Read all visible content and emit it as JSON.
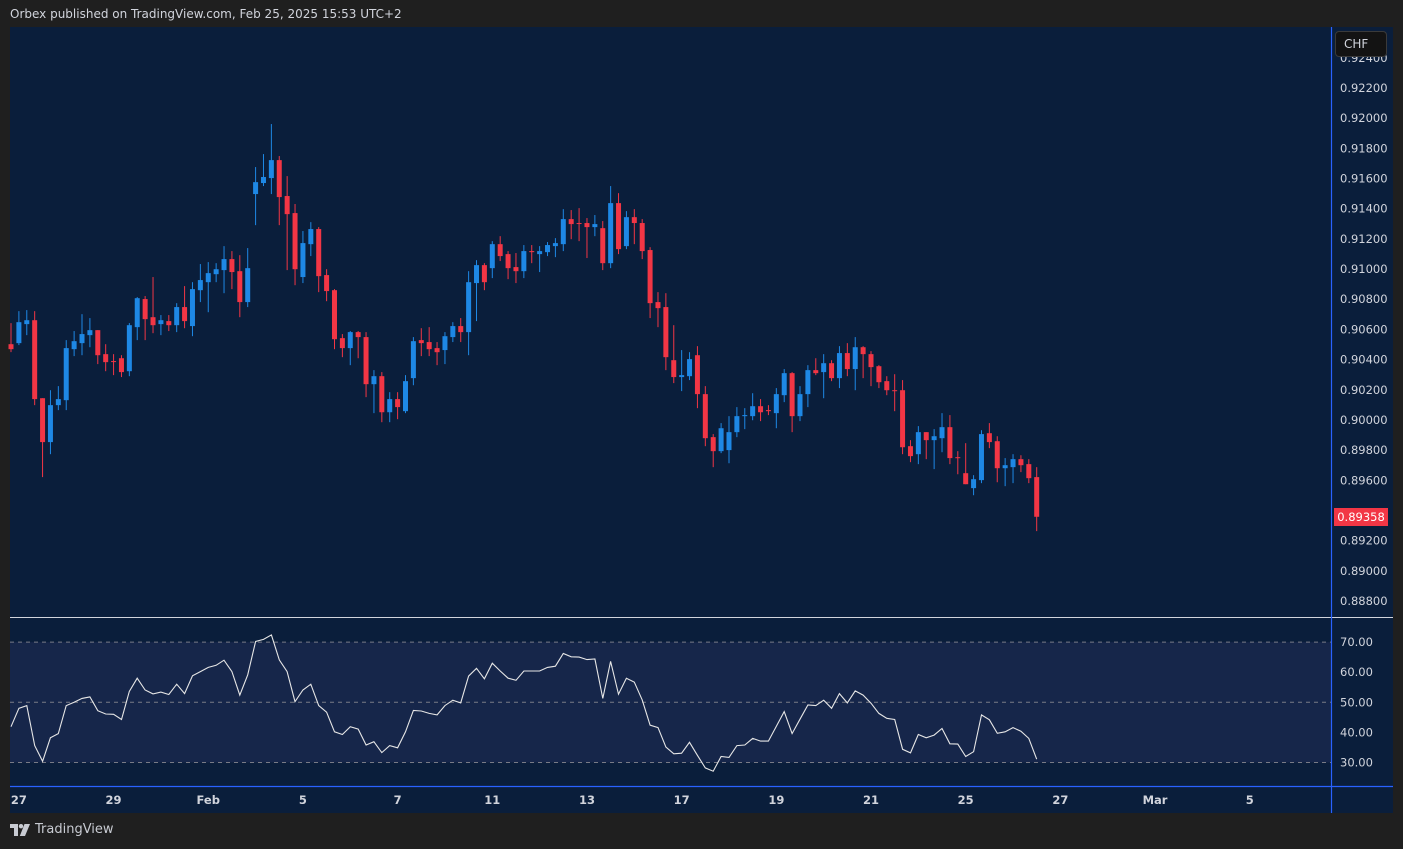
{
  "header": {
    "text": "Orbex published on TradingView.com, Feb 25, 2025 15:53 UTC+2"
  },
  "currency_button": "CHF",
  "last_price_label": "0.89358",
  "footer": {
    "brand": "TradingView",
    "logo_icon": "tradingview-logo-icon"
  },
  "colors": {
    "background": "#0a1e3b",
    "up": "#1e88e5",
    "down": "#f23645",
    "rsi_line": "#e6e6e6",
    "rsi_band": "#16264a",
    "frame": "#1f1f1f"
  },
  "chart_data": {
    "type": "candlestick",
    "price_axis_ticks": [
      "0.92400",
      "0.92200",
      "0.92000",
      "0.91800",
      "0.91600",
      "0.91400",
      "0.91200",
      "0.91000",
      "0.90800",
      "0.90600",
      "0.90400",
      "0.90200",
      "0.90000",
      "0.89800",
      "0.89600",
      "0.89400",
      "0.89200",
      "0.89000",
      "0.88800"
    ],
    "time_axis_ticks": [
      "27",
      "29",
      "Feb",
      "5",
      "7",
      "11",
      "13",
      "17",
      "19",
      "21",
      "25",
      "27",
      "Mar",
      "5"
    ],
    "last_price": 0.89358,
    "candle_fields": [
      "open",
      "high",
      "low",
      "close"
    ],
    "candles": [
      [
        0.90502,
        0.90642,
        0.90449,
        0.90469
      ],
      [
        0.90509,
        0.90721,
        0.90496,
        0.90648
      ],
      [
        0.90635,
        0.90728,
        0.90562,
        0.90661
      ],
      [
        0.90661,
        0.90721,
        0.90098,
        0.90138
      ],
      [
        0.90144,
        0.90144,
        0.89621,
        0.89853
      ],
      [
        0.89853,
        0.90197,
        0.89773,
        0.90098
      ],
      [
        0.90098,
        0.90224,
        0.90065,
        0.90138
      ],
      [
        0.90131,
        0.90529,
        0.90065,
        0.90476
      ],
      [
        0.90469,
        0.90589,
        0.90423,
        0.90522
      ],
      [
        0.90509,
        0.90701,
        0.90429,
        0.90569
      ],
      [
        0.90562,
        0.90675,
        0.90482,
        0.90595
      ],
      [
        0.90595,
        0.90595,
        0.9037,
        0.90429
      ],
      [
        0.90436,
        0.90502,
        0.90323,
        0.90383
      ],
      [
        0.9039,
        0.90436,
        0.90297,
        0.90389
      ],
      [
        0.90409,
        0.90429,
        0.90284,
        0.90317
      ],
      [
        0.90323,
        0.90642,
        0.9029,
        0.90628
      ],
      [
        0.90615,
        0.90814,
        0.90529,
        0.90807
      ],
      [
        0.90801,
        0.90821,
        0.90529,
        0.90668
      ],
      [
        0.90681,
        0.90947,
        0.90575,
        0.90628
      ],
      [
        0.90635,
        0.90695,
        0.90562,
        0.90661
      ],
      [
        0.90655,
        0.90695,
        0.90589,
        0.90628
      ],
      [
        0.90628,
        0.90774,
        0.90582,
        0.90748
      ],
      [
        0.90748,
        0.90887,
        0.90608,
        0.90655
      ],
      [
        0.90622,
        0.90913,
        0.90555,
        0.90867
      ],
      [
        0.9086,
        0.91033,
        0.90781,
        0.90927
      ],
      [
        0.90913,
        0.91046,
        0.90714,
        0.90973
      ],
      [
        0.90966,
        0.91039,
        0.90913,
        0.90999
      ],
      [
        0.90993,
        0.91152,
        0.9084,
        0.91066
      ],
      [
        0.91066,
        0.91119,
        0.90867,
        0.9098
      ],
      [
        0.90986,
        0.91092,
        0.90681,
        0.90781
      ],
      [
        0.90781,
        0.91139,
        0.90748,
        0.91006
      ],
      [
        0.91497,
        0.91676,
        0.91291,
        0.91576
      ],
      [
        0.9157,
        0.91762,
        0.9155,
        0.9161
      ],
      [
        0.91603,
        0.91961,
        0.91497,
        0.91722
      ],
      [
        0.91722,
        0.91749,
        0.91291,
        0.91477
      ],
      [
        0.91484,
        0.91616,
        0.90993,
        0.91364
      ],
      [
        0.91371,
        0.91431,
        0.90893,
        0.90999
      ],
      [
        0.90947,
        0.91252,
        0.90907,
        0.91172
      ],
      [
        0.91165,
        0.91311,
        0.91086,
        0.91265
      ],
      [
        0.91265,
        0.91278,
        0.90847,
        0.90953
      ],
      [
        0.9096,
        0.90999,
        0.90787,
        0.90854
      ],
      [
        0.9086,
        0.90867,
        0.90469,
        0.90535
      ],
      [
        0.90542,
        0.90569,
        0.90416,
        0.90476
      ],
      [
        0.90476,
        0.90589,
        0.90363,
        0.90582
      ],
      [
        0.90582,
        0.90589,
        0.90409,
        0.90549
      ],
      [
        0.90549,
        0.90582,
        0.90151,
        0.90237
      ],
      [
        0.90237,
        0.9033,
        0.90045,
        0.9029
      ],
      [
        0.9029,
        0.90317,
        0.89985,
        0.90051
      ],
      [
        0.90051,
        0.90184,
        0.89985,
        0.90138
      ],
      [
        0.90138,
        0.90184,
        0.90005,
        0.90085
      ],
      [
        0.90058,
        0.90297,
        0.90045,
        0.90257
      ],
      [
        0.90277,
        0.90549,
        0.9023,
        0.90522
      ],
      [
        0.90529,
        0.90608,
        0.90423,
        0.90509
      ],
      [
        0.90516,
        0.90615,
        0.90423,
        0.90469
      ],
      [
        0.90476,
        0.90516,
        0.90363,
        0.90449
      ],
      [
        0.90463,
        0.90582,
        0.9037,
        0.90555
      ],
      [
        0.90549,
        0.90648,
        0.90516,
        0.90622
      ],
      [
        0.90622,
        0.90675,
        0.90516,
        0.90582
      ],
      [
        0.90582,
        0.90986,
        0.90429,
        0.90913
      ],
      [
        0.90907,
        0.91059,
        0.90655,
        0.91026
      ],
      [
        0.91026,
        0.91039,
        0.9086,
        0.90913
      ],
      [
        0.91006,
        0.91185,
        0.9094,
        0.91165
      ],
      [
        0.91165,
        0.91218,
        0.91053,
        0.91086
      ],
      [
        0.91099,
        0.91119,
        0.90933,
        0.91006
      ],
      [
        0.91013,
        0.91106,
        0.90907,
        0.90986
      ],
      [
        0.90986,
        0.91159,
        0.9094,
        0.91119
      ],
      [
        0.91119,
        0.91159,
        0.91039,
        0.91112
      ],
      [
        0.91099,
        0.91152,
        0.9098,
        0.91119
      ],
      [
        0.91112,
        0.91179,
        0.91086,
        0.91159
      ],
      [
        0.91152,
        0.91205,
        0.91079,
        0.91172
      ],
      [
        0.91165,
        0.91397,
        0.91119,
        0.91331
      ],
      [
        0.91331,
        0.91391,
        0.91198,
        0.91298
      ],
      [
        0.91305,
        0.91404,
        0.91185,
        0.91304
      ],
      [
        0.91305,
        0.91338,
        0.91073,
        0.91278
      ],
      [
        0.91278,
        0.91358,
        0.91218,
        0.91298
      ],
      [
        0.91271,
        0.91318,
        0.90993,
        0.91039
      ],
      [
        0.91039,
        0.9155,
        0.91006,
        0.91437
      ],
      [
        0.91437,
        0.91503,
        0.91099,
        0.91132
      ],
      [
        0.91152,
        0.91384,
        0.91132,
        0.91344
      ],
      [
        0.91344,
        0.91397,
        0.91165,
        0.91305
      ],
      [
        0.91305,
        0.91331,
        0.91066,
        0.91119
      ],
      [
        0.91126,
        0.91145,
        0.90675,
        0.90774
      ],
      [
        0.90781,
        0.90847,
        0.90615,
        0.90741
      ],
      [
        0.90748,
        0.9084,
        0.9033,
        0.90416
      ],
      [
        0.90396,
        0.90628,
        0.90244,
        0.90284
      ],
      [
        0.90284,
        0.90463,
        0.90191,
        0.90297
      ],
      [
        0.9029,
        0.90449,
        0.90264,
        0.90403
      ],
      [
        0.90429,
        0.90489,
        0.90078,
        0.90171
      ],
      [
        0.90171,
        0.90224,
        0.89826,
        0.89879
      ],
      [
        0.89886,
        0.89906,
        0.89687,
        0.89793
      ],
      [
        0.89793,
        0.89979,
        0.8978,
        0.89945
      ],
      [
        0.898,
        0.90025,
        0.89713,
        0.89919
      ],
      [
        0.89919,
        0.90085,
        0.89886,
        0.90025
      ],
      [
        0.90025,
        0.90078,
        0.89939,
        0.90032
      ],
      [
        0.90025,
        0.90177,
        0.89998,
        0.90091
      ],
      [
        0.90091,
        0.90138,
        0.89992,
        0.90051
      ],
      [
        0.90065,
        0.90098,
        0.90032,
        0.90058
      ],
      [
        0.90045,
        0.90211,
        0.89945,
        0.90171
      ],
      [
        0.90164,
        0.90337,
        0.90118,
        0.9031
      ],
      [
        0.9031,
        0.90317,
        0.89919,
        0.90025
      ],
      [
        0.90025,
        0.90224,
        0.89992,
        0.90171
      ],
      [
        0.90171,
        0.90363,
        0.90085,
        0.9033
      ],
      [
        0.9033,
        0.90409,
        0.90297,
        0.9031
      ],
      [
        0.90317,
        0.90436,
        0.90144,
        0.90376
      ],
      [
        0.90376,
        0.90396,
        0.90257,
        0.90277
      ],
      [
        0.90277,
        0.90489,
        0.90211,
        0.90443
      ],
      [
        0.90443,
        0.90509,
        0.9029,
        0.90337
      ],
      [
        0.90337,
        0.90549,
        0.90197,
        0.90482
      ],
      [
        0.90482,
        0.90489,
        0.90277,
        0.90436
      ],
      [
        0.90436,
        0.90456,
        0.90224,
        0.9035
      ],
      [
        0.90356,
        0.90363,
        0.90211,
        0.9025
      ],
      [
        0.90257,
        0.9029,
        0.90164,
        0.90197
      ],
      [
        0.90197,
        0.90303,
        0.90058,
        0.90191
      ],
      [
        0.90197,
        0.90264,
        0.89773,
        0.89819
      ],
      [
        0.89826,
        0.89866,
        0.8972,
        0.8976
      ],
      [
        0.89773,
        0.89959,
        0.89707,
        0.89919
      ],
      [
        0.89919,
        0.89919,
        0.8974,
        0.89866
      ],
      [
        0.89866,
        0.89939,
        0.89674,
        0.89892
      ],
      [
        0.89879,
        0.90045,
        0.89786,
        0.89952
      ],
      [
        0.89952,
        0.90032,
        0.89707,
        0.89747
      ],
      [
        0.89753,
        0.89793,
        0.8964,
        0.89747
      ],
      [
        0.89647,
        0.89846,
        0.89574,
        0.89574
      ],
      [
        0.89548,
        0.89634,
        0.89501,
        0.89607
      ],
      [
        0.89601,
        0.89932,
        0.89581,
        0.89906
      ],
      [
        0.89912,
        0.89979,
        0.89813,
        0.89853
      ],
      [
        0.89859,
        0.89892,
        0.89587,
        0.8968
      ],
      [
        0.8968,
        0.89747,
        0.89561,
        0.897
      ],
      [
        0.89687,
        0.89773,
        0.89581,
        0.8974
      ],
      [
        0.8974,
        0.89766,
        0.89654,
        0.897
      ],
      [
        0.89707,
        0.8974,
        0.89581,
        0.89614
      ],
      [
        0.89621,
        0.89687,
        0.89263,
        0.89358
      ]
    ],
    "rsi": {
      "axis_ticks": [
        "70.00",
        "60.00",
        "50.00",
        "40.00",
        "30.00"
      ],
      "levels": [
        70,
        50,
        30
      ],
      "ylim": [
        22,
        78
      ],
      "values": [
        41.9,
        48.0,
        48.9,
        35.6,
        30.4,
        38.2,
        39.6,
        48.9,
        50.0,
        51.3,
        51.8,
        47.2,
        46.1,
        46.0,
        44.3,
        53.6,
        58.0,
        54.1,
        52.8,
        53.4,
        52.6,
        56.0,
        52.9,
        58.8,
        60.2,
        61.6,
        62.3,
        64.0,
        60.2,
        52.4,
        59.1,
        70.2,
        70.9,
        72.4,
        64.1,
        60.2,
        50.2,
        54.1,
        56.0,
        48.9,
        46.7,
        40.2,
        39.3,
        41.9,
        41.1,
        35.8,
        36.9,
        33.3,
        35.6,
        34.9,
        40.2,
        47.3,
        47.1,
        46.3,
        45.8,
        48.9,
        50.7,
        49.8,
        58.7,
        61.3,
        57.8,
        63.0,
        60.4,
        58.0,
        57.3,
        60.4,
        60.4,
        60.4,
        61.6,
        62.0,
        66.2,
        65.1,
        65.0,
        64.2,
        64.4,
        51.3,
        63.6,
        52.7,
        58.0,
        56.7,
        50.8,
        42.4,
        41.6,
        35.1,
        32.9,
        33.1,
        36.7,
        32.4,
        28.2,
        27.1,
        32.0,
        31.7,
        35.6,
        35.8,
        38.0,
        37.1,
        37.1,
        42.0,
        46.9,
        39.6,
        44.4,
        49.1,
        48.9,
        50.7,
        48.0,
        52.9,
        49.8,
        53.8,
        52.4,
        49.7,
        46.3,
        44.7,
        44.3,
        34.4,
        33.2,
        39.3,
        38.2,
        39.1,
        41.3,
        36.2,
        36.1,
        32.0,
        33.6,
        45.8,
        44.2,
        39.7,
        40.2,
        41.6,
        40.4,
        38.0,
        31.1
      ]
    }
  }
}
